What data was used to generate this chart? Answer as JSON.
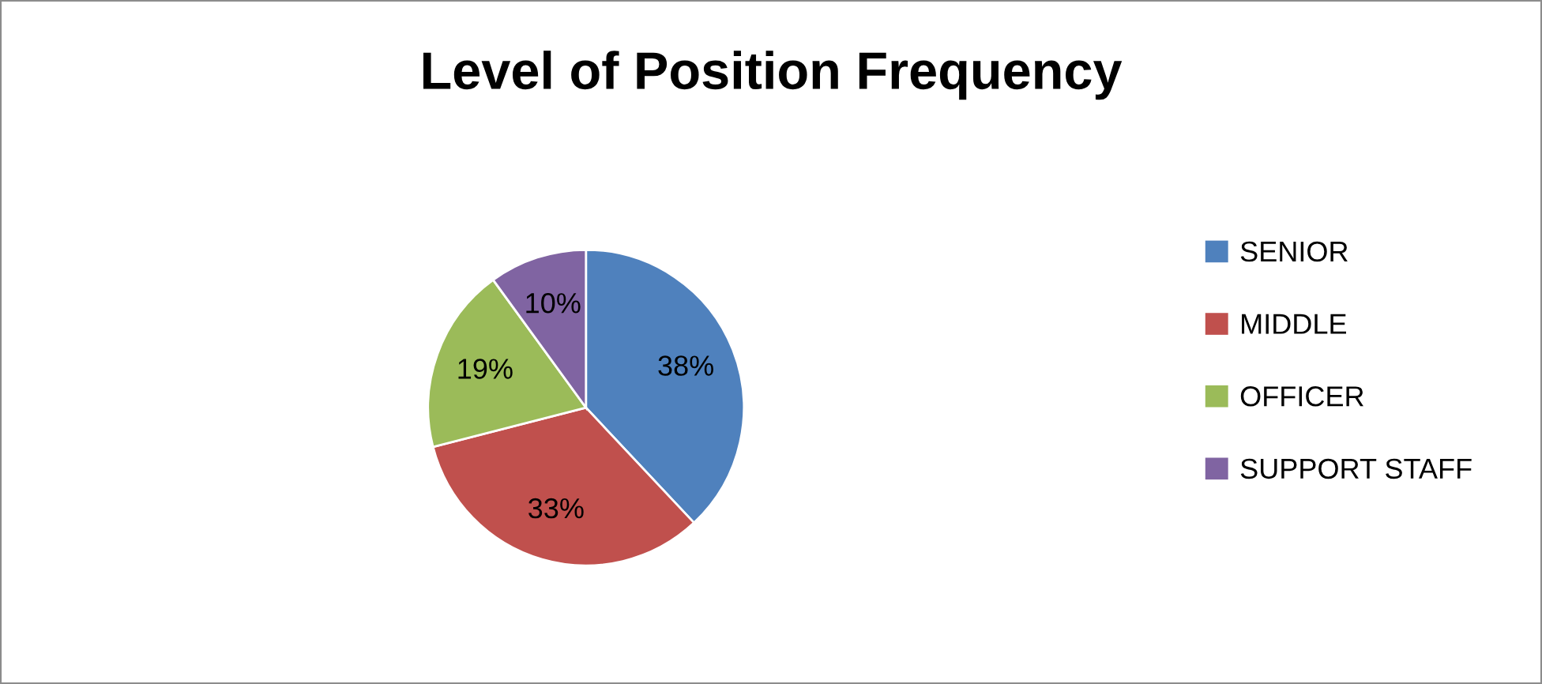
{
  "chart_data": {
    "type": "pie",
    "title": "Level of Position Frequency",
    "categories": [
      "SENIOR",
      "MIDDLE",
      "OFFICER",
      "SUPPORT STAFF"
    ],
    "values": [
      38,
      33,
      19,
      10
    ],
    "colors": [
      "#4f81bd",
      "#c0504d",
      "#9bbb59",
      "#8064a2"
    ],
    "value_labels": [
      "38%",
      "33%",
      "19%",
      "10%"
    ],
    "legend": "right"
  }
}
